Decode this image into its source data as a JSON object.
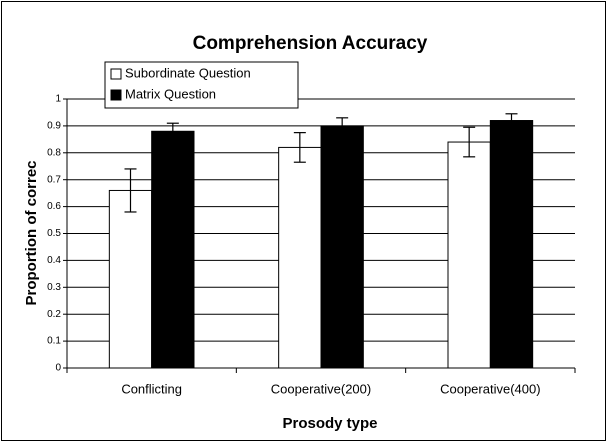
{
  "chart_data": {
    "type": "bar",
    "title": "Comprehension Accuracy",
    "x_label": "Prosody type",
    "y_label": "Proportion of correc",
    "categories": [
      "Conflicting",
      "Cooperative(200)",
      "Cooperative(400)"
    ],
    "series": [
      {
        "name": "Subordinate Question",
        "color": "#ffffff",
        "values": [
          0.66,
          0.82,
          0.84
        ],
        "errors": [
          0.08,
          0.055,
          0.055
        ]
      },
      {
        "name": "Matrix Question",
        "color": "#000000",
        "values": [
          0.88,
          0.9,
          0.92
        ],
        "errors": [
          0.03,
          0.03,
          0.025
        ]
      }
    ],
    "ylim": [
      0,
      1
    ],
    "yticks": [
      0,
      0.1,
      0.2,
      0.3,
      0.4,
      0.5,
      0.6,
      0.7,
      0.8,
      0.9,
      1
    ],
    "grid": true,
    "legend": "top-left"
  }
}
